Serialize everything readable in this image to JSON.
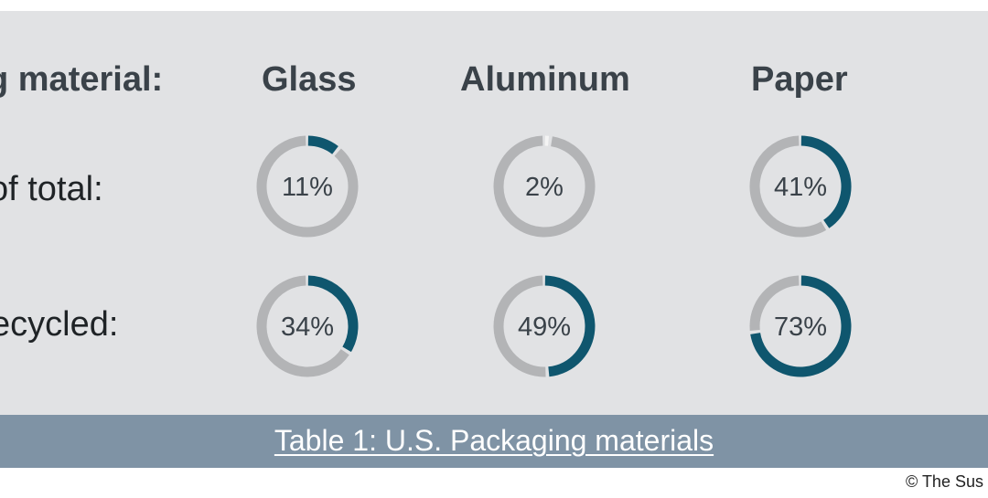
{
  "row_header": "g material:",
  "rows": [
    {
      "label": "of total:"
    },
    {
      "label": "ecycled:"
    }
  ],
  "caption": "Table 1: U.S. Packaging materials",
  "copyright": "© The Sus",
  "colors": {
    "fill": "#0f566e",
    "track": "#b3b4b6",
    "panel": "#e1e2e4",
    "footer": "#7f93a5",
    "value_text": "#3a4249"
  },
  "chart_data": {
    "type": "donut",
    "categories": [
      "Glass",
      "Aluminum",
      "Paper"
    ],
    "series": [
      {
        "name": "of total:",
        "values": [
          11,
          2,
          41
        ],
        "labels": [
          "11%",
          "2%",
          "41%"
        ]
      },
      {
        "name": "ecycled:",
        "values": [
          34,
          49,
          73
        ],
        "labels": [
          "34%",
          "49%",
          "73%"
        ]
      }
    ],
    "unit": "%",
    "max": 100
  }
}
